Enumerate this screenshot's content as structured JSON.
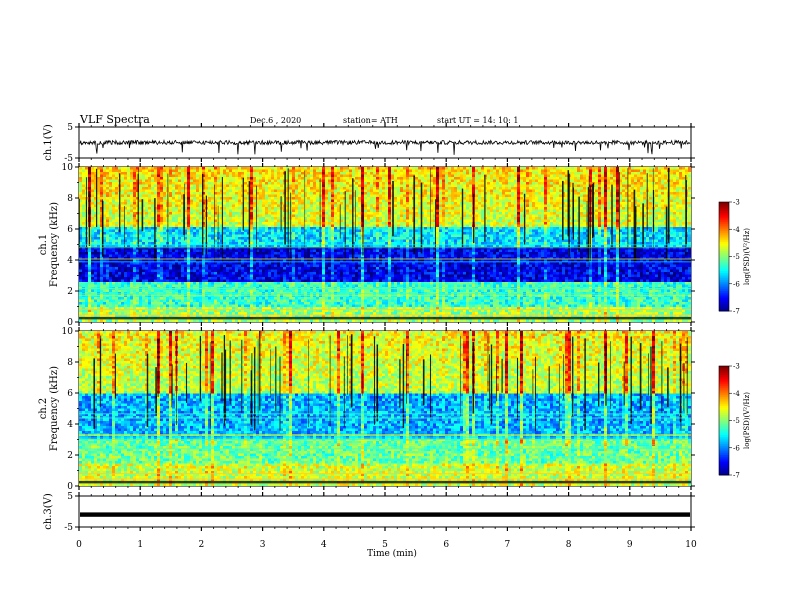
{
  "header": {
    "title": "VLF Spectra",
    "date": "Dec.6  , 2020",
    "station": "station= ATH",
    "start": "start  UT =   14: 10: 1"
  },
  "chart_data": [
    {
      "type": "line",
      "panel": "ch1-waveform",
      "ylabel": "ch.1(V)",
      "ylim": [
        -5,
        5
      ],
      "yticks": [
        "5",
        "-5"
      ],
      "xlim": [
        0,
        10
      ],
      "description_values": {
        "baseline": 0,
        "spike_min": -4
      }
    },
    {
      "type": "heatmap",
      "panel": "ch1-spectrogram",
      "ylabel": "ch.1\nFrequency (kHz)",
      "ylabel_lines": [
        "ch.1",
        "Frequency (kHz)"
      ],
      "ylim": [
        0,
        10
      ],
      "yticks": [
        "0",
        "2",
        "4",
        "6",
        "8",
        "10"
      ],
      "xlim": [
        0,
        10
      ],
      "colorbar": {
        "label": "log(PSD)(V²/Hz)",
        "range": [
          -7,
          -3
        ],
        "ticks": [
          "-3",
          "-4",
          "-5",
          "-6",
          "-7"
        ]
      }
    },
    {
      "type": "heatmap",
      "panel": "ch2-spectrogram",
      "ylabel_lines": [
        "ch.2",
        "Frequency (kHz)"
      ],
      "ylim": [
        0,
        10
      ],
      "yticks": [
        "0",
        "2",
        "4",
        "6",
        "8",
        "10"
      ],
      "xlim": [
        0,
        10
      ],
      "colorbar": {
        "label": "log(PSD)(V²/Hz)",
        "range": [
          -7,
          -3
        ],
        "ticks": [
          "-3",
          "-4",
          "-5",
          "-6",
          "-7"
        ]
      }
    },
    {
      "type": "line",
      "panel": "ch3-waveform",
      "ylabel": "ch.3(V)",
      "ylim": [
        -5,
        5
      ],
      "yticks": [
        "5",
        "-5"
      ],
      "xlim": [
        0,
        10
      ],
      "description_values": {
        "baseline": -1
      }
    }
  ],
  "xaxis": {
    "label": "Time  (min)",
    "ticks": [
      "0",
      "1",
      "2",
      "3",
      "4",
      "5",
      "6",
      "7",
      "8",
      "9",
      "10"
    ]
  },
  "colors": {
    "cmap": [
      "#00007f",
      "#0000ff",
      "#007fff",
      "#00ffff",
      "#7fff7f",
      "#ffff00",
      "#ff7f00",
      "#ff0000",
      "#7f0000"
    ]
  }
}
